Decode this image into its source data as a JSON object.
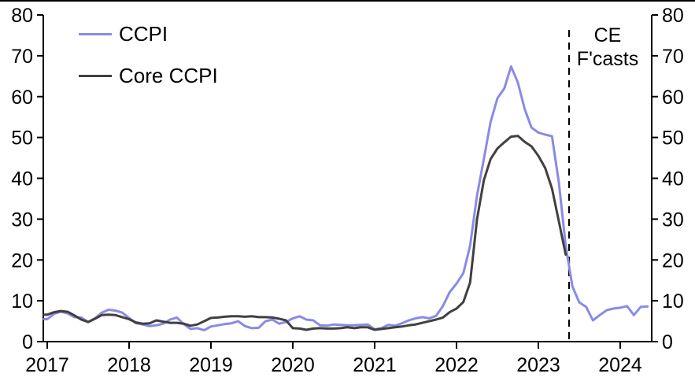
{
  "chart_data": {
    "type": "line",
    "title": "",
    "y_axis": {
      "min": 0,
      "max": 80,
      "step": 10,
      "ticks": [
        0,
        10,
        20,
        30,
        40,
        50,
        60,
        70,
        80
      ],
      "mirrored_right": true
    },
    "x_ticks": [
      "2017",
      "2018",
      "2019",
      "2020",
      "2021",
      "2022",
      "2023",
      "2024"
    ],
    "x_start": "2017-01",
    "months_per_tick": 12,
    "series": [
      {
        "name": "CCPI",
        "color": "#8a8ae6",
        "start": "2017-01",
        "end": "2024-05",
        "values": [
          5.5,
          6.8,
          7.3,
          6.9,
          6.0,
          5.9,
          4.8,
          5.7,
          7.1,
          7.8,
          7.6,
          7.1,
          5.8,
          4.5,
          4.2,
          3.8,
          4.0,
          4.4,
          5.4,
          5.9,
          4.3,
          3.1,
          3.3,
          2.8,
          3.7,
          4.0,
          4.3,
          4.5,
          5.0,
          3.8,
          3.3,
          3.4,
          5.0,
          5.4,
          4.4,
          4.8,
          5.7,
          6.2,
          5.4,
          5.2,
          4.0,
          3.9,
          4.2,
          4.1,
          4.0,
          4.0,
          4.1,
          4.2,
          3.0,
          3.3,
          4.1,
          3.9,
          4.5,
          5.2,
          5.7,
          6.0,
          5.7,
          6.3,
          8.7,
          12.1,
          14.2,
          16.8,
          23.5,
          35.7,
          44.7,
          53.8,
          59.6,
          62.0,
          67.4,
          63.4,
          56.9,
          52.4,
          51.2,
          50.7,
          50.3,
          39.0,
          23.5,
          13.5,
          9.6,
          8.5,
          5.2,
          6.5,
          7.7,
          8.1,
          8.3,
          8.7,
          6.5,
          8.5,
          8.6
        ]
      },
      {
        "name": "Core CCPI",
        "color": "#404040",
        "start": "2017-01",
        "end": "2023-05",
        "values": [
          6.6,
          7.2,
          7.5,
          7.3,
          6.4,
          5.4,
          4.8,
          5.6,
          6.5,
          6.6,
          6.5,
          6.0,
          5.5,
          4.7,
          4.4,
          4.5,
          5.2,
          4.9,
          4.6,
          4.6,
          4.4,
          3.9,
          4.2,
          5.0,
          5.8,
          5.9,
          6.1,
          6.2,
          6.2,
          6.1,
          6.2,
          6.0,
          6.0,
          5.9,
          5.6,
          5.2,
          3.3,
          3.2,
          2.9,
          3.2,
          3.3,
          3.2,
          3.2,
          3.3,
          3.5,
          3.3,
          3.5,
          3.5,
          2.9,
          3.1,
          3.3,
          3.5,
          3.7,
          4.0,
          4.2,
          4.6,
          5.0,
          5.4,
          5.9,
          7.2,
          8.1,
          9.7,
          14.5,
          29.9,
          39.5,
          44.7,
          47.3,
          48.8,
          50.2,
          50.4,
          48.9,
          47.8,
          45.5,
          42.5,
          37.5,
          29.5,
          21.3
        ]
      }
    ],
    "forecast_divider": {
      "style": "dashed",
      "month_index_from_start": 76.5,
      "position": "2023-05"
    },
    "annotation": {
      "line1": "CE",
      "line2": "F'casts"
    },
    "legend_position": "top-left",
    "grid": false
  },
  "legend": {
    "items": [
      {
        "label": "CCPI"
      },
      {
        "label": "Core CCPI"
      }
    ]
  }
}
